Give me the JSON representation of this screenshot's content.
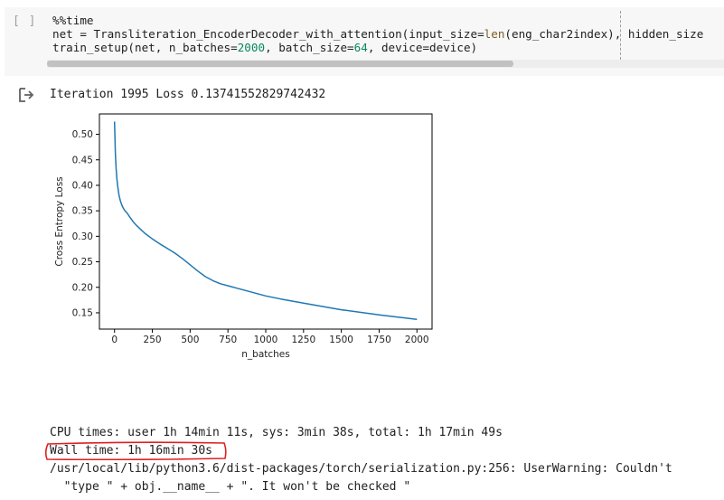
{
  "cell": {
    "run_indicator": "[ ]",
    "code_lines": [
      [
        {
          "t": "%%time",
          "c": ""
        }
      ],
      [
        {
          "t": "net = Transliteration_EncoderDecoder_with_attention(input_size=",
          "c": ""
        },
        {
          "t": "len",
          "c": "fn"
        },
        {
          "t": "(eng_char2index), hidden_size",
          "c": ""
        }
      ],
      [
        {
          "t": "train_setup(net, n_batches=",
          "c": ""
        },
        {
          "t": "2000",
          "c": "num"
        },
        {
          "t": ", batch_size=",
          "c": ""
        },
        {
          "t": "64",
          "c": "num"
        },
        {
          "t": ", device=device)",
          "c": ""
        }
      ]
    ]
  },
  "output": {
    "icon": "output-arrow-icon",
    "iteration_line": "Iteration 1995 Loss 0.13741552829742432",
    "cpu_times": "CPU times: user 1h 14min 11s, sys: 3min 38s, total: 1h 17min 49s",
    "wall_time": "Wall time: 1h 16min 30s",
    "warning_line1": "/usr/local/lib/python3.6/dist-packages/torch/serialization.py:256: UserWarning: Couldn't",
    "warning_line2": "  \"type \" + obj.__name__ + \". It won't be checked \"",
    "highlight_color": "#e02020"
  },
  "chart_data": {
    "type": "line",
    "xlabel": "n_batches",
    "ylabel": "Cross Entropy Loss",
    "xlim": [
      -100,
      2100
    ],
    "ylim": [
      0.118,
      0.54
    ],
    "xticks": [
      0,
      250,
      500,
      750,
      1000,
      1250,
      1500,
      1750,
      2000
    ],
    "yticks": [
      0.15,
      0.2,
      0.25,
      0.3,
      0.35,
      0.4,
      0.45,
      0.5
    ],
    "ytick_labels": [
      "0.15",
      "0.20",
      "0.25",
      "0.30",
      "0.35",
      "0.40",
      "0.45",
      "0.50"
    ],
    "grid": false,
    "line_color": "#1f77b4",
    "series": [
      {
        "x": [
          0,
          2,
          5,
          10,
          15,
          20,
          25,
          30,
          40,
          50,
          60,
          70,
          85,
          100,
          125,
          150,
          200,
          250,
          300,
          350,
          400,
          450,
          500,
          550,
          600,
          650,
          700,
          800,
          900,
          1000,
          1100,
          1250,
          1500,
          1750,
          2000
        ],
        "y": [
          0.525,
          0.5,
          0.465,
          0.435,
          0.415,
          0.4,
          0.39,
          0.38,
          0.368,
          0.36,
          0.354,
          0.35,
          0.345,
          0.338,
          0.328,
          0.32,
          0.306,
          0.295,
          0.285,
          0.276,
          0.267,
          0.256,
          0.244,
          0.232,
          0.221,
          0.213,
          0.207,
          0.199,
          0.191,
          0.183,
          0.177,
          0.169,
          0.156,
          0.146,
          0.137
        ]
      }
    ]
  }
}
